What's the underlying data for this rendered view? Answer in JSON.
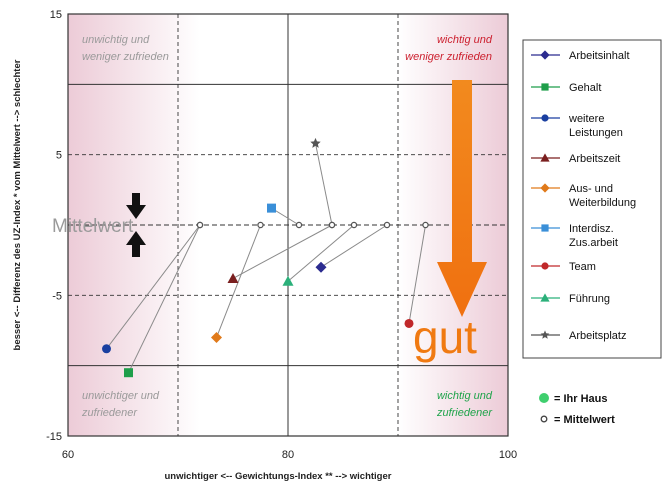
{
  "chart_data": {
    "type": "scatter",
    "xlabel": "unwichtiger <--     Gewichtungs-Index **     --> wichtiger",
    "ylabel": "besser <--     Differenz des UZ-Index * vom Mittelwert     --> schlechter",
    "xlim": [
      60,
      100
    ],
    "ylim": [
      -15,
      15
    ],
    "x_ticks": [
      "60",
      "80",
      "100"
    ],
    "y_ticks": [
      "15",
      "5",
      "-5",
      "-15"
    ],
    "grid": true,
    "legend_position": "right",
    "quadrants": {
      "top_left": "unwichtig und weniger zufrieden",
      "top_right": "wichtig und weniger zufrieden",
      "bottom_left": "unwichtiger und zufriedener",
      "bottom_right": "wichtig und zufriedener"
    },
    "mittelwert_label": "Mittelwert",
    "gut_label": "gut",
    "series": [
      {
        "name": "Arbeitsinhalt",
        "color": "#2b2b8f",
        "marker": "diamond",
        "haus": [
          83,
          -3
        ],
        "mittel": [
          89,
          0
        ]
      },
      {
        "name": "Gehalt",
        "color": "#1e9e4a",
        "marker": "square",
        "haus": [
          65.5,
          -10.5
        ],
        "mittel": [
          72,
          0
        ]
      },
      {
        "name": "weitere Leistungen",
        "color": "#1a3fa0",
        "marker": "circle",
        "haus": [
          63.5,
          -8.8
        ],
        "mittel": [
          72,
          0
        ]
      },
      {
        "name": "Arbeitszeit",
        "color": "#7a1f1f",
        "marker": "triangle",
        "haus": [
          75,
          -3.8
        ],
        "mittel": [
          84,
          0
        ]
      },
      {
        "name": "Aus- und Weiterbildung",
        "color": "#e07a1a",
        "marker": "diamond",
        "haus": [
          73.5,
          -8
        ],
        "mittel": [
          77.5,
          0
        ]
      },
      {
        "name": "Interdisz. Zus.arbeit",
        "color": "#3a8fd8",
        "marker": "square",
        "haus": [
          78.5,
          1.2
        ],
        "mittel": [
          81,
          0
        ]
      },
      {
        "name": "Team",
        "color": "#c0282a",
        "marker": "circle",
        "haus": [
          91,
          -7
        ],
        "mittel": [
          92.5,
          0
        ]
      },
      {
        "name": "Führung",
        "color": "#2bb07a",
        "marker": "triangle",
        "haus": [
          80,
          -4
        ],
        "mittel": [
          86,
          0
        ]
      },
      {
        "name": "Arbeitsplatz",
        "color": "#555555",
        "marker": "star",
        "haus": [
          82.5,
          5.8
        ],
        "mittel": [
          84,
          0
        ]
      }
    ],
    "extra_legend": [
      {
        "label": "= Ihr Haus",
        "color": "#3fcf6e",
        "marker": "circle-filled"
      },
      {
        "label": "= Mittelwert",
        "color": "#444444",
        "marker": "circle-open"
      }
    ]
  }
}
